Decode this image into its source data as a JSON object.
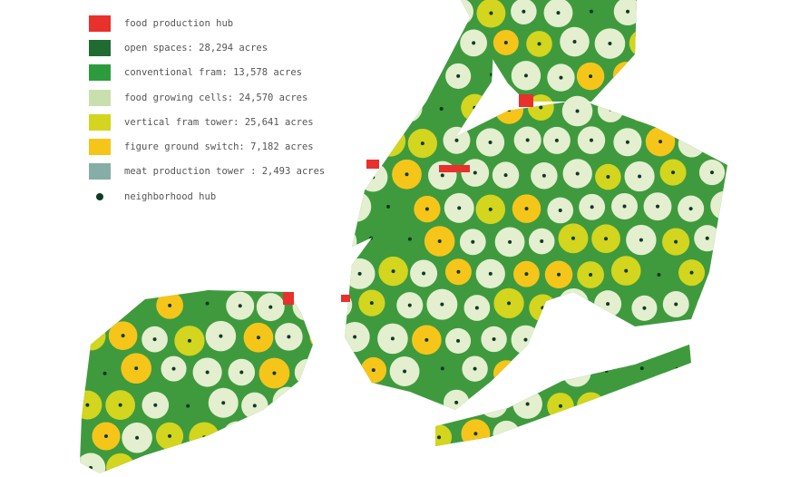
{
  "legend": {
    "items": [
      {
        "label": "food production hub",
        "color": "#e8302c"
      },
      {
        "label": "open spaces: 28,294 acres",
        "color": "#1f6b32"
      },
      {
        "label": "conventional fram: 13,578 acres",
        "color": "#2c9b3c"
      },
      {
        "label": "food growing cells: 24,570 acres",
        "color": "#c9dfae"
      },
      {
        "label": "vertical fram tower: 25,641 acres",
        "color": "#d3d51e"
      },
      {
        "label": "figure ground switch: 7,182 acres",
        "color": "#f6c51a"
      },
      {
        "label": "meat production tower : 2,493 acres",
        "color": "#86aea6"
      }
    ],
    "hub_label": "neighborhood hub",
    "hub_color": "#0d3b24"
  },
  "map": {
    "land_color": "#3f9a3e",
    "cell_color": "#e3efcf",
    "vertical_color": "#d3d51e",
    "switch_color": "#f6c51a",
    "hub_red": "#e8302c"
  }
}
